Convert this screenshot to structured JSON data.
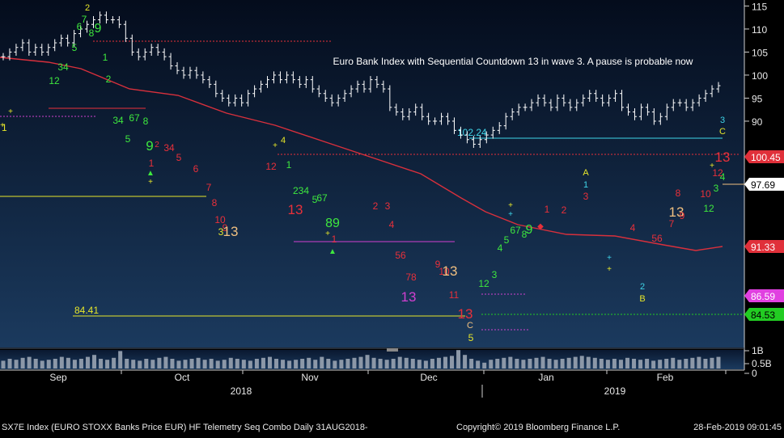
{
  "chart_data": {
    "type": "candlestick",
    "annotation": "Euro Bank Index with Sequential Countdown 13 in wave 3. A pause is probable now",
    "y_axis": {
      "ylim": [
        86,
        116
      ],
      "ticks": [
        90,
        95,
        100,
        105,
        110,
        115
      ]
    },
    "volume_axis": {
      "ticks": [
        "1B",
        "0.5B",
        "0"
      ]
    },
    "x_axis": {
      "months": [
        "Sep",
        "Oct",
        "Nov",
        "Dec",
        "Jan",
        "Feb"
      ],
      "years": [
        "2018",
        "2019"
      ]
    },
    "price_labels": [
      {
        "value": 100.45,
        "text": "100.45",
        "bg": "#e0303a",
        "fg": "#ffffff"
      },
      {
        "value": 97.69,
        "text": "97.69",
        "bg": "#ffffff",
        "fg": "#000000"
      },
      {
        "value": 91.33,
        "text": "91.33",
        "bg": "#e0303a",
        "fg": "#ffffff"
      },
      {
        "value": 86.59,
        "text": "86.59",
        "bg": "#e040e0",
        "fg": "#ffffff"
      },
      {
        "value": 84.53,
        "text": "84.53",
        "bg": "#22cc22",
        "fg": "#000000"
      }
    ],
    "levels": [
      {
        "name": "102.24",
        "value": 102.24,
        "color": "#3fd5e8",
        "style": "solid"
      },
      {
        "name": "84.41",
        "value": 84.41,
        "color": "#e6e62a",
        "style": "solid"
      }
    ],
    "wave_labels": [
      {
        "text": "3",
        "color": "#3fd5e8"
      },
      {
        "text": "C",
        "color": "#e6e62a"
      },
      {
        "text": "A",
        "color": "#e6e62a"
      },
      {
        "text": "1",
        "color": "#3fd5e8"
      },
      {
        "text": "2",
        "color": "#3fd5e8"
      },
      {
        "text": "B",
        "color": "#e6e62a"
      },
      {
        "text": "C",
        "color": "#3fd5e8"
      },
      {
        "text": "5",
        "color": "#e6e62a"
      }
    ],
    "countdown_labels": [
      "13",
      "13",
      "13",
      "13",
      "13",
      "13",
      "13"
    ],
    "colors": {
      "candles": "#ffffff",
      "moving_average": "#d8303c",
      "setup_buy": "#3ee83e",
      "setup_sell": "#e8303a",
      "countdown_13_orange": "#f0c080",
      "countdown_13_red": "#e8303a",
      "countdown_13_magenta": "#d040d0"
    }
  },
  "footer": {
    "left": "SX7E Index (EURO STOXX Banks Price EUR) HF Telemetry Seq Combo  Daily 31AUG2018-",
    "copyright": "Copyright© 2019 Bloomberg Finance L.P.",
    "timestamp": "28-Feb-2019 09:01:45"
  }
}
